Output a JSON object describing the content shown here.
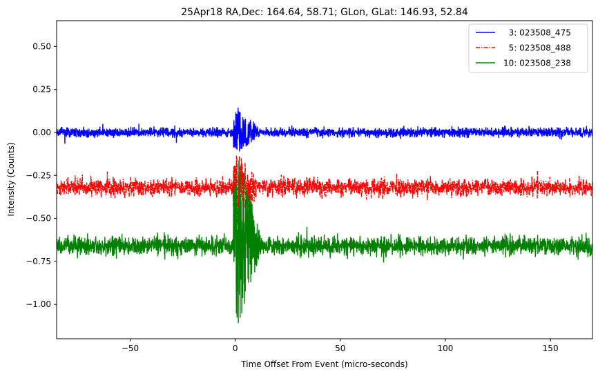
{
  "chart_data": {
    "type": "line",
    "title": "25Apr18 RA,Dec:  164.64,  58.71; GLon, GLat:  146.93,  52.84",
    "xlabel": "Time Offset From Event (micro-seconds)",
    "ylabel": "Intensity (Counts)",
    "xlim": [
      -85,
      170
    ],
    "ylim": [
      -1.2,
      0.65
    ],
    "xticks": [
      -50,
      0,
      50,
      100,
      150
    ],
    "xtick_labels": [
      "−50",
      "0",
      "50",
      "100",
      "150"
    ],
    "yticks": [
      0.5,
      0.25,
      0.0,
      -0.25,
      -0.5,
      -0.75,
      -1.0
    ],
    "ytick_labels": [
      "0.50",
      "0.25",
      "0.00",
      "−0.25",
      "−0.50",
      "−0.75",
      "−1.00"
    ],
    "grid": false,
    "legend_position": "top-right",
    "series": [
      {
        "name": "3: 023508_475",
        "legend_label": "  3: 023508_475",
        "color": "#0000ff",
        "linestyle": "solid",
        "baseline": 0.0,
        "noise_amplitude": 0.05,
        "event_peak": 0.15,
        "event_min": -0.12
      },
      {
        "name": "5: 023508_488",
        "legend_label": "  5: 023508_488",
        "color": "#ff0000",
        "linestyle": "dashdot",
        "baseline": -0.32,
        "noise_amplitude": 0.09,
        "event_peak": -0.12,
        "event_min": -0.55
      },
      {
        "name": "10: 023508_238",
        "legend_label": "10: 023508_238",
        "color": "#008000",
        "linestyle": "solid",
        "baseline": -0.66,
        "noise_amplitude": 0.1,
        "event_peak": -0.12,
        "event_min": -1.12
      }
    ]
  }
}
